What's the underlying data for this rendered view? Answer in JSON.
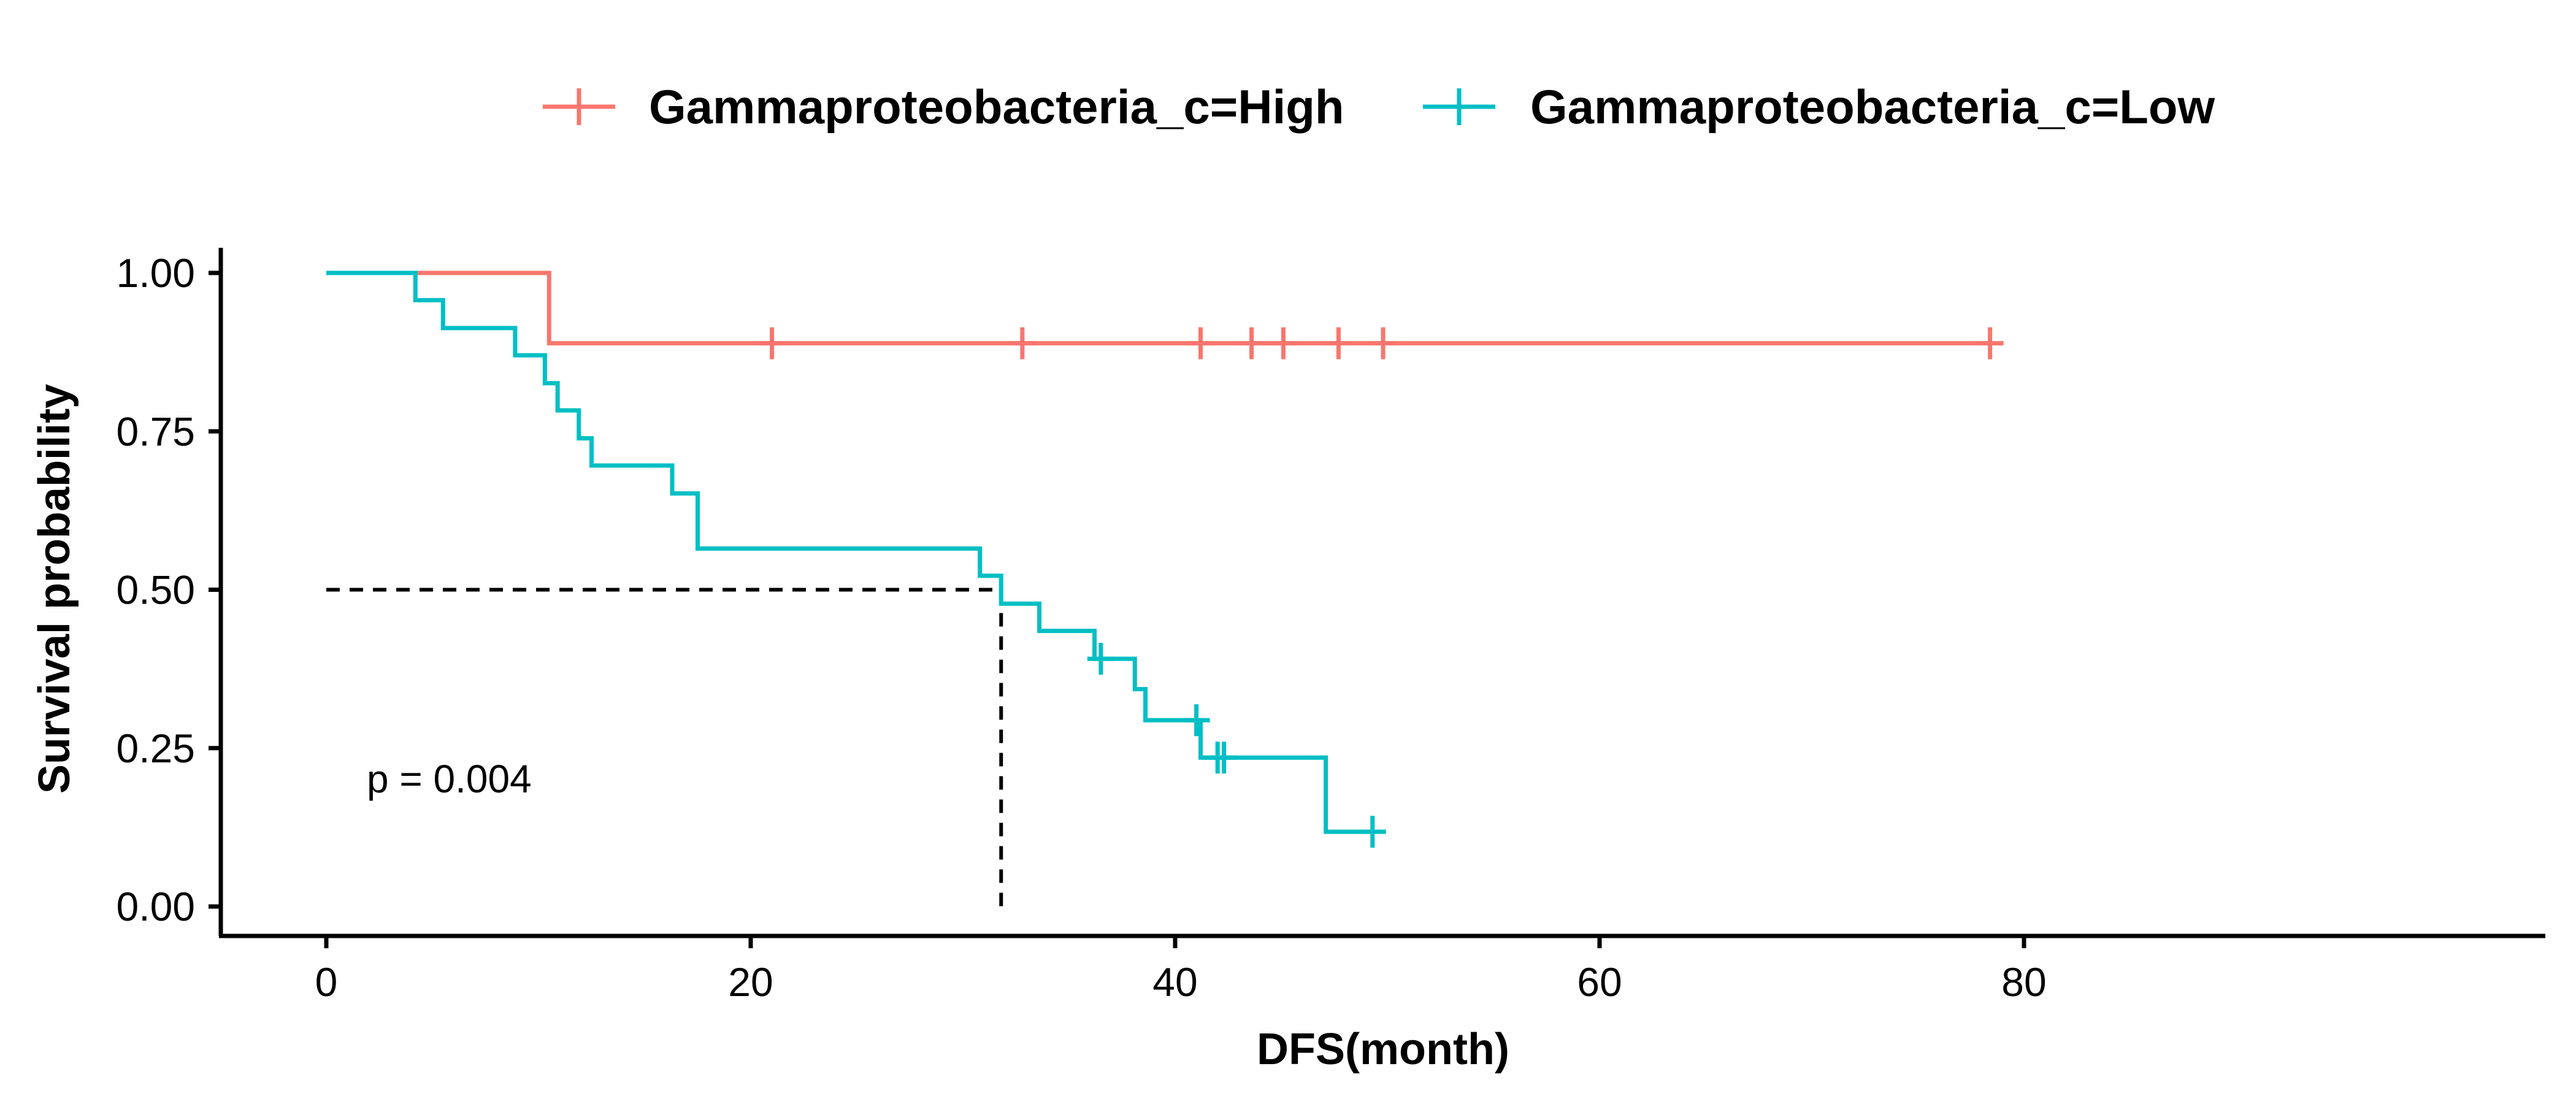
{
  "chart_data": {
    "type": "line",
    "subtype": "kaplan-meier survival curve",
    "xlabel": "DFS(month)",
    "ylabel": "Survival probability",
    "xlim": [
      0,
      80
    ],
    "ylim": [
      0,
      1
    ],
    "x_ticks": [
      0,
      20,
      40,
      60,
      80
    ],
    "y_ticks": [
      0,
      0.25,
      0.5,
      0.75,
      1
    ],
    "x_tick_labels": [
      "0",
      "20",
      "40",
      "60",
      "80"
    ],
    "y_tick_labels": [
      "0.00",
      "0.25",
      "0.50",
      "0.75",
      "1.00"
    ],
    "grid": false,
    "legend_position": "top",
    "annotation": "p = 0.004",
    "median_survival": {
      "y": 0.5,
      "x": 31.8
    },
    "series": [
      {
        "name": "Gammaproteobacteria_c=High",
        "color": "#F8766D",
        "steps": [
          [
            0,
            1.0
          ],
          [
            10.5,
            0.889
          ],
          [
            78.4,
            0.889
          ]
        ],
        "censor_times": [
          21.0,
          32.8,
          41.2,
          43.6,
          45.1,
          47.7,
          49.8,
          78.4
        ],
        "censor_value": 0.889
      },
      {
        "name": "Gammaproteobacteria_c=Low",
        "color": "#00BFC4",
        "steps": [
          [
            0,
            1.0
          ],
          [
            4.2,
            0.957
          ],
          [
            5.5,
            0.913
          ],
          [
            8.9,
            0.87
          ],
          [
            10.3,
            0.826
          ],
          [
            10.9,
            0.783
          ],
          [
            11.9,
            0.739
          ],
          [
            12.5,
            0.696
          ],
          [
            16.3,
            0.652
          ],
          [
            17.5,
            0.565
          ],
          [
            30.8,
            0.522
          ],
          [
            31.8,
            0.478
          ],
          [
            33.6,
            0.435
          ],
          [
            36.2,
            0.391
          ],
          [
            38.1,
            0.343
          ],
          [
            38.6,
            0.294
          ],
          [
            41.2,
            0.235
          ],
          [
            47.1,
            0.118
          ],
          [
            49.3,
            0.118
          ]
        ],
        "censors": [
          [
            36.5,
            0.391
          ],
          [
            41.0,
            0.294
          ],
          [
            42.0,
            0.235
          ],
          [
            42.3,
            0.235
          ],
          [
            49.3,
            0.118
          ]
        ]
      }
    ]
  }
}
